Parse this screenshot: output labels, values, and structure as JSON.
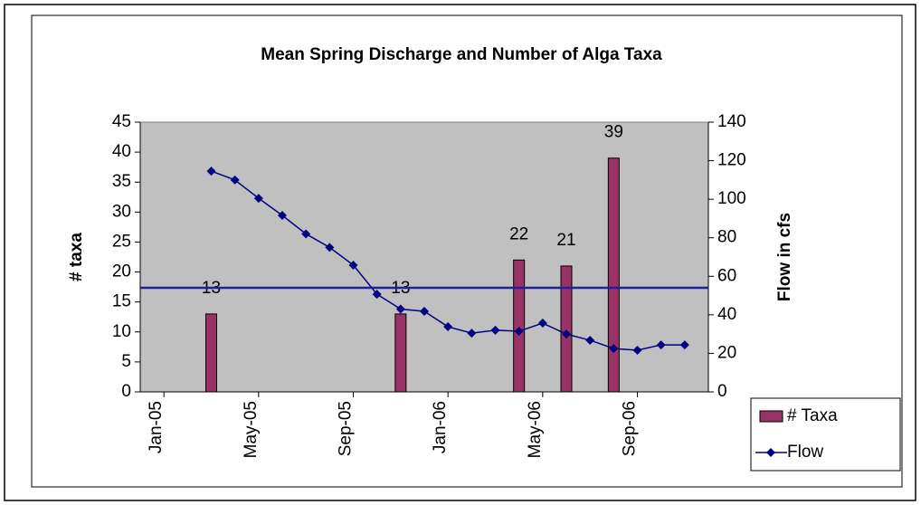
{
  "chart_data": {
    "type": "bar_line",
    "title": "Mean Spring Discharge and Number of Alga Taxa",
    "ylabel": "# taxa",
    "y2label": "Flow in cfs",
    "xlim": [
      "2004-12",
      "2006-12"
    ],
    "xticks": [
      {
        "value": "2005-01",
        "label": "Jan-05"
      },
      {
        "value": "2005-05",
        "label": "May-05"
      },
      {
        "value": "2005-09",
        "label": "Sep-05"
      },
      {
        "value": "2006-01",
        "label": "Jan-06"
      },
      {
        "value": "2006-05",
        "label": "May-06"
      },
      {
        "value": "2006-09",
        "label": "Sep-06"
      }
    ],
    "ylim": [
      0,
      45
    ],
    "yticks": [
      0,
      5,
      10,
      15,
      20,
      25,
      30,
      35,
      40,
      45
    ],
    "y2lim": [
      0,
      140
    ],
    "y2ticks": [
      0,
      20,
      40,
      60,
      80,
      100,
      120,
      140
    ],
    "plot_background": "#c0c0c0",
    "series": [
      {
        "name": "# Taxa",
        "type": "bar",
        "color": "#993366",
        "x": [
          "2005-03",
          "2005-11",
          "2006-04",
          "2006-06",
          "2006-08"
        ],
        "values": [
          13,
          13,
          22,
          21,
          39
        ]
      },
      {
        "name": "Flow",
        "type": "line",
        "axis": "y2",
        "color": "#000080",
        "x": [
          "2005-03",
          "2005-04",
          "2005-05",
          "2005-06",
          "2005-07",
          "2005-08",
          "2005-09",
          "2005-10",
          "2005-11",
          "2005-12",
          "2006-01",
          "2006-02",
          "2006-03",
          "2006-04",
          "2006-05",
          "2006-06",
          "2006-07",
          "2006-08",
          "2006-09",
          "2006-10",
          "2006-11"
        ],
        "values": [
          114.6,
          110,
          100.5,
          91.6,
          82,
          75,
          65.8,
          50.7,
          43,
          41.8,
          33.8,
          30.5,
          32,
          31.5,
          35.7,
          30,
          26.8,
          22.5,
          21.6,
          24.4,
          24.4
        ]
      }
    ],
    "reference_line": {
      "value": 54,
      "axis": "y2",
      "color": "#1f1f9f"
    },
    "legend": "right"
  }
}
